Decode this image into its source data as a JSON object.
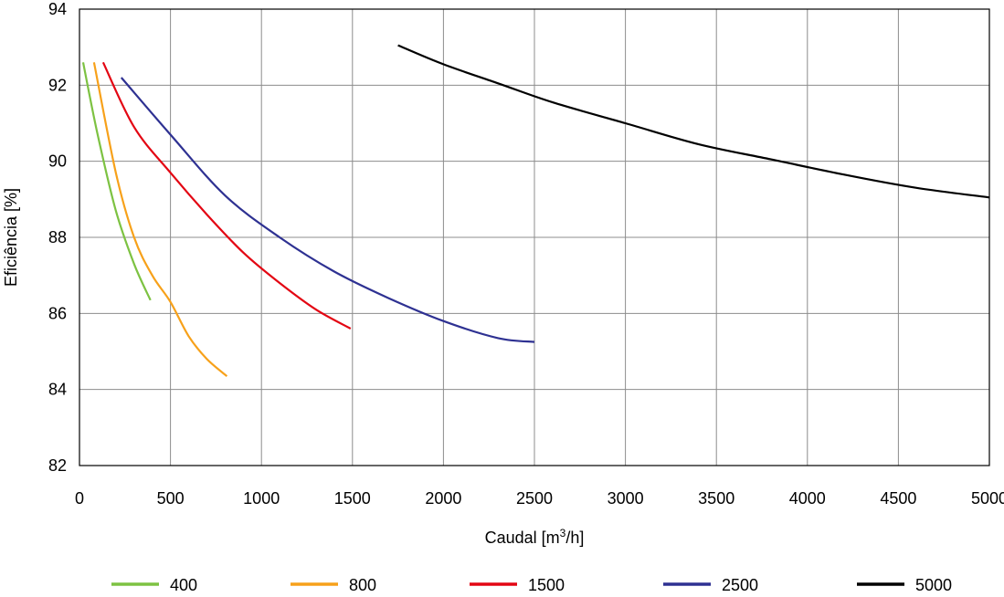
{
  "chart_data": {
    "type": "line",
    "title": "",
    "xlabel": "Caudal [m³/h]",
    "ylabel": "Eficiência  [%]",
    "xlim": [
      0,
      5000
    ],
    "ylim": [
      82,
      94
    ],
    "xticks": [
      0,
      500,
      1000,
      1500,
      2000,
      2500,
      3000,
      3500,
      4000,
      4500,
      5000
    ],
    "yticks": [
      82,
      84,
      86,
      88,
      90,
      92,
      94
    ],
    "xtick_labels": [
      "0",
      "500",
      "1000",
      "1500",
      "2000",
      "2500",
      "3000",
      "3500",
      "4000",
      "4500",
      "5000"
    ],
    "ytick_labels": [
      "82",
      "84",
      "86",
      "88",
      "90",
      "92",
      "94"
    ],
    "grid": true,
    "legend_position": "bottom",
    "series": [
      {
        "name": "400",
        "color": "#7dc242",
        "x": [
          20,
          100,
          200,
          300,
          390
        ],
        "y": [
          92.6,
          90.7,
          88.7,
          87.3,
          86.35
        ]
      },
      {
        "name": "800",
        "color": "#f7a11a",
        "x": [
          80,
          200,
          300,
          400,
          500,
          600,
          700,
          810
        ],
        "y": [
          92.6,
          89.7,
          88.0,
          87.0,
          86.3,
          85.4,
          84.8,
          84.35
        ]
      },
      {
        "name": "1500",
        "color": "#e30613",
        "x": [
          130,
          300,
          500,
          700,
          900,
          1100,
          1300,
          1490
        ],
        "y": [
          92.6,
          90.9,
          89.7,
          88.6,
          87.6,
          86.8,
          86.1,
          85.6
        ]
      },
      {
        "name": "2500",
        "color": "#2e3192",
        "x": [
          230,
          500,
          800,
          1100,
          1400,
          1700,
          2000,
          2300,
          2500
        ],
        "y": [
          92.2,
          90.7,
          89.1,
          88.0,
          87.1,
          86.4,
          85.8,
          85.35,
          85.25
        ]
      },
      {
        "name": "5000",
        "color": "#000000",
        "x": [
          1750,
          2000,
          2300,
          2600,
          3000,
          3400,
          3800,
          4200,
          4600,
          5000
        ],
        "y": [
          93.05,
          92.55,
          92.05,
          91.55,
          91.0,
          90.45,
          90.05,
          89.65,
          89.3,
          89.05
        ]
      }
    ]
  }
}
